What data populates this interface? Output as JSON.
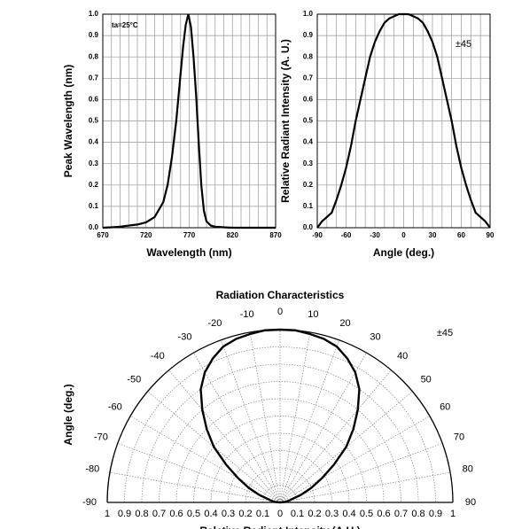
{
  "chart_data": [
    {
      "type": "line",
      "annotation": "ta=25°C",
      "xlabel": "Wavelength (nm)",
      "ylabel": "Peak Wavelength (nm)",
      "x": [
        670,
        680,
        690,
        700,
        710,
        720,
        730,
        740,
        745,
        750,
        755,
        760,
        763,
        766,
        769,
        772,
        775,
        778,
        781,
        784,
        787,
        790,
        795,
        800,
        810,
        820,
        870
      ],
      "values": [
        0,
        0.002,
        0.005,
        0.01,
        0.015,
        0.025,
        0.05,
        0.12,
        0.2,
        0.33,
        0.5,
        0.72,
        0.85,
        0.95,
        1.0,
        0.94,
        0.8,
        0.62,
        0.4,
        0.2,
        0.08,
        0.03,
        0.01,
        0.005,
        0.002,
        0,
        0
      ],
      "color": "#000000",
      "xlim": [
        670,
        870
      ],
      "ylim": [
        0,
        1
      ],
      "xticks": [
        670,
        720,
        770,
        820,
        870
      ],
      "yticks": [
        {
          "value": 0,
          "label": "0.0"
        },
        0.1,
        0.2,
        0.3,
        0.4,
        0.5,
        0.6,
        0.7,
        0.8,
        0.9,
        {
          "value": 1,
          "label": "1.0"
        }
      ],
      "grid": true
    },
    {
      "type": "line",
      "annotation": "±45",
      "xlabel": "Angle (deg.)",
      "ylabel": "Relative Radiant Intensity (A. U.)",
      "x": [
        -90,
        -85,
        -80,
        -75,
        -70,
        -65,
        -60,
        -55,
        -50,
        -45,
        -40,
        -35,
        -30,
        -25,
        -20,
        -15,
        -10,
        -5,
        0,
        5,
        10,
        15,
        20,
        25,
        30,
        35,
        40,
        45,
        50,
        55,
        60,
        65,
        70,
        75,
        80,
        85,
        90
      ],
      "values": [
        0,
        0.03,
        0.05,
        0.07,
        0.13,
        0.2,
        0.28,
        0.38,
        0.5,
        0.6,
        0.7,
        0.8,
        0.87,
        0.92,
        0.96,
        0.98,
        0.99,
        1.0,
        1.0,
        1.0,
        0.99,
        0.98,
        0.96,
        0.92,
        0.87,
        0.8,
        0.7,
        0.6,
        0.5,
        0.38,
        0.28,
        0.2,
        0.13,
        0.07,
        0.05,
        0.03,
        0
      ],
      "color": "#000000",
      "xlim": [
        -90,
        90
      ],
      "ylim": [
        0,
        1
      ],
      "xticks": [
        -90,
        -60,
        -30,
        0,
        30,
        60,
        90
      ],
      "yticks": [
        {
          "value": 0,
          "label": "0.0"
        },
        0.1,
        0.2,
        0.3,
        0.4,
        0.5,
        0.6,
        0.7,
        0.8,
        0.9,
        {
          "value": 1,
          "label": "1.0"
        }
      ],
      "grid": true
    },
    {
      "type": "polar",
      "title": "Radiation Characteristics",
      "annotation": "±45",
      "theta_label": "Angle (deg.)",
      "r_label": "Relative Radiant Intensity (A.U.)",
      "theta": [
        -90,
        -85,
        -80,
        -75,
        -70,
        -65,
        -60,
        -55,
        -50,
        -45,
        -40,
        -35,
        -30,
        -25,
        -20,
        -15,
        -10,
        -5,
        0,
        5,
        10,
        15,
        20,
        25,
        30,
        35,
        40,
        45,
        50,
        55,
        60,
        65,
        70,
        75,
        80,
        85,
        90
      ],
      "values": [
        0,
        0.03,
        0.05,
        0.07,
        0.13,
        0.2,
        0.28,
        0.38,
        0.5,
        0.6,
        0.7,
        0.8,
        0.87,
        0.92,
        0.96,
        0.98,
        0.99,
        1.0,
        1.0,
        1.0,
        0.99,
        0.98,
        0.96,
        0.92,
        0.87,
        0.8,
        0.7,
        0.6,
        0.5,
        0.38,
        0.28,
        0.2,
        0.13,
        0.07,
        0.05,
        0.03,
        0
      ],
      "color": "#000000",
      "rlim": [
        0,
        1
      ],
      "rticks": [
        0,
        0.1,
        0.2,
        0.3,
        0.4,
        0.5,
        0.6,
        0.7,
        0.8,
        0.9,
        1
      ],
      "thetaticks": [
        -90,
        -80,
        -70,
        -60,
        -50,
        -40,
        -30,
        -20,
        -10,
        0,
        10,
        20,
        30,
        40,
        50,
        60,
        70,
        80,
        90
      ]
    }
  ]
}
